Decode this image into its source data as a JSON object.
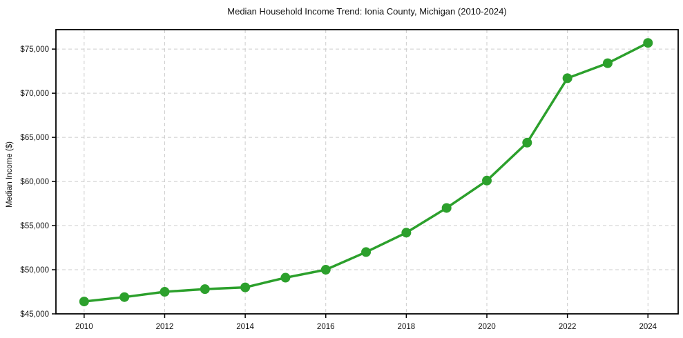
{
  "chart_data": {
    "type": "line",
    "title": "Median Household Income Trend: Ionia County, Michigan (2010-2024)",
    "xlabel": "",
    "ylabel": "Median Income ($)",
    "x": [
      2010,
      2011,
      2012,
      2013,
      2014,
      2015,
      2016,
      2017,
      2018,
      2019,
      2020,
      2021,
      2022,
      2023,
      2024
    ],
    "series": [
      {
        "name": "Median Household Income",
        "values": [
          46400,
          46900,
          47500,
          47800,
          48000,
          49100,
          50000,
          52000,
          54200,
          57000,
          60100,
          64400,
          71700,
          73400,
          75700
        ]
      }
    ],
    "xticks": [
      2010,
      2012,
      2014,
      2016,
      2018,
      2020,
      2022,
      2024
    ],
    "xtick_labels": [
      "2010",
      "2012",
      "2014",
      "2016",
      "2018",
      "2020",
      "2022",
      "2024"
    ],
    "yticks": [
      45000,
      50000,
      55000,
      60000,
      65000,
      70000,
      75000
    ],
    "ytick_labels": [
      "$45,000",
      "$50,000",
      "$55,000",
      "$60,000",
      "$65,000",
      "$70,000",
      "$75,000"
    ],
    "xlim": [
      2009.3,
      2024.75
    ],
    "ylim": [
      45000,
      77200
    ],
    "grid": true,
    "grid_style": "dashed",
    "legend": false,
    "line_color": "#2ca02c",
    "marker": "circle",
    "marker_color": "#2ca02c",
    "grid_color": "#cccccc",
    "spine_color": "#000000",
    "text_color": "#111111",
    "background_color": "#ffffff"
  }
}
